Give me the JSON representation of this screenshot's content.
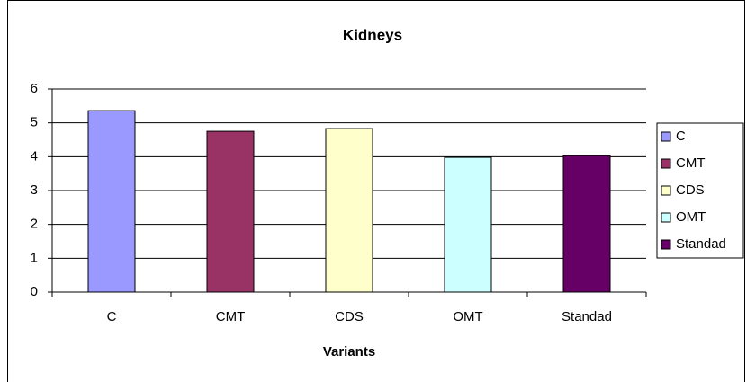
{
  "chart_data": {
    "type": "bar",
    "title": "Kidneys",
    "x_label": "Variants",
    "categories": [
      "C",
      "CMT",
      "CDS",
      "OMT",
      "Standad"
    ],
    "values": [
      5.36,
      4.75,
      4.83,
      3.98,
      4.03
    ],
    "colors": [
      "#9999ff",
      "#993366",
      "#ffffcc",
      "#ccffff",
      "#660066"
    ],
    "ylim": [
      0,
      6
    ],
    "yticks": [
      0,
      1,
      2,
      3,
      4,
      5,
      6
    ],
    "grid": true,
    "legend": "right"
  }
}
